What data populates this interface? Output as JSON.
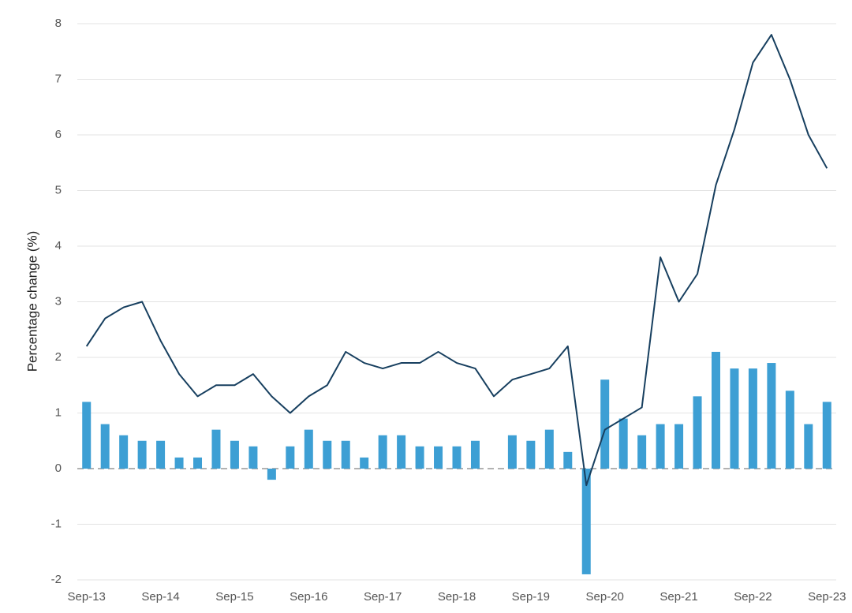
{
  "chart_data": {
    "type": "bar-line",
    "y_label": "Percentage change (%)",
    "categories": [
      "Sep-13",
      null,
      null,
      null,
      "Sep-14",
      null,
      null,
      null,
      "Sep-15",
      null,
      null,
      null,
      "Sep-16",
      null,
      null,
      null,
      "Sep-17",
      null,
      null,
      null,
      "Sep-18",
      null,
      null,
      null,
      "Sep-19",
      null,
      null,
      null,
      "Sep-20",
      null,
      null,
      null,
      "Sep-21",
      null,
      null,
      null,
      "Sep-22",
      null,
      null,
      null,
      "Sep-23"
    ],
    "series": [
      {
        "type": "bar",
        "color": "#3d9fd4",
        "values": [
          1.2,
          0.8,
          0.6,
          0.5,
          0.5,
          0.2,
          0.2,
          0.7,
          0.5,
          0.4,
          -0.2,
          0.4,
          0.7,
          0.5,
          0.5,
          0.2,
          0.6,
          0.6,
          0.4,
          0.4,
          0.4,
          0.5,
          0.0,
          0.6,
          0.5,
          0.7,
          0.3,
          -1.9,
          1.6,
          0.9,
          0.6,
          0.8,
          0.8,
          1.3,
          2.1,
          1.8,
          1.8,
          1.9,
          1.4,
          0.8,
          1.2
        ]
      },
      {
        "type": "line",
        "color": "#173f5f",
        "values": [
          2.2,
          2.7,
          2.9,
          3.0,
          2.3,
          1.7,
          1.3,
          1.5,
          1.5,
          1.7,
          1.3,
          1.0,
          1.3,
          1.5,
          2.1,
          1.9,
          1.8,
          1.9,
          1.9,
          2.1,
          1.9,
          1.8,
          1.3,
          1.6,
          1.7,
          1.8,
          2.2,
          -0.3,
          0.7,
          0.9,
          1.1,
          3.8,
          3.0,
          3.5,
          5.1,
          6.1,
          7.3,
          7.8,
          7.0,
          6.0,
          5.4
        ]
      }
    ],
    "ylim": [
      -2,
      8
    ],
    "yticks": [
      -2,
      -1,
      0,
      1,
      2,
      3,
      4,
      5,
      6,
      7,
      8
    ],
    "grid": true
  }
}
